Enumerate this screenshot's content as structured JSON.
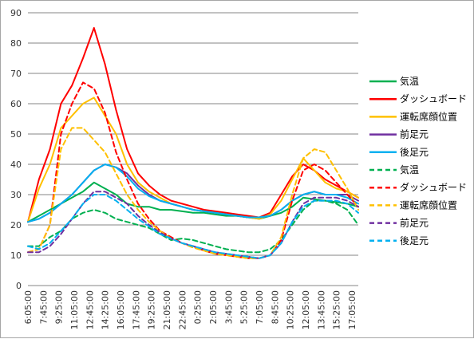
{
  "chart_data": {
    "type": "line",
    "title": "",
    "xlabel": "",
    "ylabel": "",
    "ylim": [
      0,
      90
    ],
    "yticks": [
      0,
      10,
      20,
      30,
      40,
      50,
      60,
      70,
      80,
      90
    ],
    "grid": "horizontal",
    "legend_position": "right",
    "x_tick_labels": [
      "6:05:00",
      "7:45:00",
      "9:25:00",
      "11:05:00",
      "12:45:00",
      "14:25:00",
      "16:05:00",
      "17:45:00",
      "19:25:00",
      "21:05:00",
      "22:45:00",
      "0:25:00",
      "2:05:00",
      "3:45:00",
      "5:25:00",
      "7:05:00",
      "8:45:00",
      "10:25:00",
      "12:05:00",
      "13:45:00",
      "15:25:00",
      "17:05:00"
    ],
    "series": [
      {
        "name": "気温",
        "color": "#00b050",
        "dash": "solid",
        "values": [
          21,
          23,
          25,
          27,
          29,
          31,
          34,
          32,
          30,
          27,
          26,
          26,
          25,
          25,
          24.5,
          24,
          24,
          23.5,
          23,
          23,
          22.5,
          22,
          23,
          24,
          26,
          29,
          28.5,
          28,
          27.5,
          27,
          26
        ]
      },
      {
        "name": "ダッシュボード",
        "color": "#ff0000",
        "dash": "solid",
        "values": [
          21,
          35,
          45,
          60,
          66,
          75,
          85,
          73,
          58,
          45,
          37,
          33,
          30,
          28,
          27,
          26,
          25,
          24.5,
          24,
          23.5,
          23,
          22.5,
          24,
          30,
          36,
          40,
          38,
          35,
          33,
          31,
          29
        ]
      },
      {
        "name": "運転席顔位置",
        "color": "#ffc000",
        "dash": "solid",
        "values": [
          21,
          32,
          40,
          52,
          56,
          60,
          62,
          56,
          50,
          40,
          34,
          31,
          29,
          27,
          26,
          25,
          24.5,
          24,
          23.5,
          23,
          22.5,
          22,
          23.5,
          28,
          35,
          42,
          38,
          34,
          32,
          31,
          29
        ]
      },
      {
        "name": "前足元",
        "color": "#7030a0",
        "dash": "solid",
        "values": [
          21,
          22,
          24,
          27,
          30,
          34,
          38,
          40,
          39,
          37,
          33,
          30,
          28,
          27,
          26,
          25,
          24.5,
          24,
          23.5,
          23,
          22.5,
          22.5,
          23,
          25,
          28,
          30,
          31,
          30,
          30,
          30,
          28
        ]
      },
      {
        "name": "後足元",
        "color": "#00b0f0",
        "dash": "solid",
        "values": [
          21,
          22,
          24,
          27,
          30,
          34,
          38,
          40,
          39,
          36,
          32,
          29.5,
          28,
          27,
          26,
          25,
          24.5,
          24,
          23.5,
          23,
          22.5,
          22.5,
          23,
          25,
          28,
          30,
          31,
          30,
          30,
          29,
          27
        ]
      },
      {
        "name": "気温",
        "color": "#00b050",
        "dash": "dashed",
        "values": [
          13,
          13,
          16,
          18,
          22,
          24,
          25,
          24,
          22,
          21,
          20,
          19,
          17,
          15,
          15.5,
          15,
          14,
          13,
          12,
          11.5,
          11,
          11,
          12,
          15,
          20,
          25,
          28,
          28,
          27,
          25,
          20
        ]
      },
      {
        "name": "ダッシュボード",
        "color": "#ff0000",
        "dash": "dashed",
        "values": [
          11,
          12,
          20,
          50,
          60,
          67,
          65,
          57,
          44,
          35,
          27,
          22,
          18,
          16,
          14,
          13,
          11.5,
          10.5,
          10,
          9.5,
          9,
          9,
          10,
          15,
          28,
          38,
          40,
          38,
          34,
          30,
          26
        ]
      },
      {
        "name": "運転席顔位置",
        "color": "#ffc000",
        "dash": "dashed",
        "values": [
          11,
          12,
          20,
          45,
          52,
          52,
          48,
          44,
          37,
          30,
          25,
          21,
          18,
          15.5,
          14,
          12.5,
          11.5,
          10.5,
          10,
          9.5,
          9,
          9,
          10,
          16,
          30,
          42,
          45,
          44,
          38,
          32,
          25
        ]
      },
      {
        "name": "前足元",
        "color": "#7030a0",
        "dash": "dashed",
        "values": [
          11,
          11,
          13,
          17,
          22,
          27,
          31,
          31,
          29,
          27,
          23,
          20,
          17.5,
          15.5,
          14,
          13,
          12,
          11,
          10.5,
          10,
          9.5,
          9,
          10,
          14,
          21,
          27,
          29,
          29,
          29,
          28,
          26
        ]
      },
      {
        "name": "後足元",
        "color": "#00b0f0",
        "dash": "dashed",
        "values": [
          13,
          12,
          14,
          18,
          22,
          27,
          30,
          30,
          28,
          25,
          22,
          19.5,
          17,
          15.5,
          14,
          13,
          12,
          11,
          10.5,
          10,
          9.5,
          9,
          10,
          14,
          21,
          26,
          28,
          28,
          28,
          27,
          24
        ]
      }
    ]
  }
}
